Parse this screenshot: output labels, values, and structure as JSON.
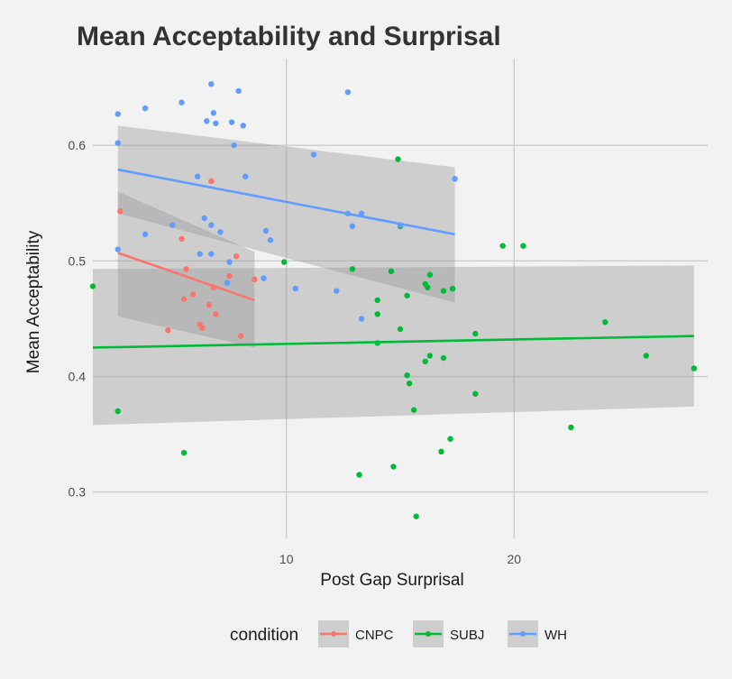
{
  "chart_data": {
    "type": "scatter",
    "title": "Mean Acceptability and Surprisal",
    "xlabel": "Post Gap Surprisal",
    "ylabel": "Mean Acceptability",
    "xlim": [
      1.5,
      28.5
    ],
    "ylim": [
      0.26,
      0.675
    ],
    "x_ticks": [
      10,
      20
    ],
    "y_ticks": [
      0.3,
      0.4,
      0.5,
      0.6
    ],
    "grid": true,
    "legend": {
      "title": "condition",
      "position": "bottom"
    },
    "series": [
      {
        "name": "CNPC",
        "color": "#F8766D",
        "points": [
          [
            2.7,
            0.543
          ],
          [
            5.4,
            0.519
          ],
          [
            5.6,
            0.493
          ],
          [
            5.5,
            0.467
          ],
          [
            5.9,
            0.471
          ],
          [
            4.8,
            0.44
          ],
          [
            6.3,
            0.442
          ],
          [
            6.2,
            0.445
          ],
          [
            6.6,
            0.462
          ],
          [
            6.7,
            0.569
          ],
          [
            6.9,
            0.454
          ],
          [
            7.5,
            0.487
          ],
          [
            7.8,
            0.504
          ],
          [
            8.6,
            0.484
          ],
          [
            8.0,
            0.435
          ],
          [
            6.8,
            0.477
          ]
        ],
        "fit": {
          "x": [
            2.6,
            8.6
          ],
          "y": [
            0.507,
            0.466
          ],
          "ci_lower": [
            0.452,
            0.425
          ],
          "ci_upper": [
            0.56,
            0.508
          ]
        }
      },
      {
        "name": "SUBJ",
        "color": "#00BA38",
        "points": [
          [
            1.5,
            0.478
          ],
          [
            2.6,
            0.37
          ],
          [
            5.5,
            0.334
          ],
          [
            9.9,
            0.499
          ],
          [
            12.9,
            0.493
          ],
          [
            13.2,
            0.315
          ],
          [
            14.0,
            0.466
          ],
          [
            14.0,
            0.454
          ],
          [
            14.0,
            0.429
          ],
          [
            14.6,
            0.491
          ],
          [
            14.7,
            0.322
          ],
          [
            14.9,
            0.588
          ],
          [
            15.0,
            0.441
          ],
          [
            15.0,
            0.53
          ],
          [
            15.3,
            0.47
          ],
          [
            15.3,
            0.401
          ],
          [
            15.4,
            0.394
          ],
          [
            15.6,
            0.371
          ],
          [
            15.7,
            0.279
          ],
          [
            16.1,
            0.48
          ],
          [
            16.1,
            0.413
          ],
          [
            16.2,
            0.477
          ],
          [
            16.3,
            0.418
          ],
          [
            16.3,
            0.488
          ],
          [
            16.8,
            0.335
          ],
          [
            16.9,
            0.474
          ],
          [
            16.9,
            0.416
          ],
          [
            17.2,
            0.346
          ],
          [
            17.3,
            0.476
          ],
          [
            18.3,
            0.437
          ],
          [
            18.3,
            0.385
          ],
          [
            19.5,
            0.513
          ],
          [
            20.4,
            0.513
          ],
          [
            22.5,
            0.356
          ],
          [
            24.0,
            0.447
          ],
          [
            25.8,
            0.418
          ],
          [
            27.9,
            0.407
          ]
        ],
        "fit": {
          "x": [
            1.5,
            27.9
          ],
          "y": [
            0.425,
            0.435
          ],
          "ci_lower": [
            0.358,
            0.374
          ],
          "ci_upper": [
            0.493,
            0.496
          ]
        }
      },
      {
        "name": "WH",
        "color": "#619CFF",
        "points": [
          [
            2.6,
            0.627
          ],
          [
            2.6,
            0.602
          ],
          [
            2.6,
            0.51
          ],
          [
            3.8,
            0.632
          ],
          [
            3.8,
            0.523
          ],
          [
            5.0,
            0.531
          ],
          [
            5.4,
            0.637
          ],
          [
            6.1,
            0.573
          ],
          [
            6.2,
            0.506
          ],
          [
            6.4,
            0.537
          ],
          [
            6.5,
            0.621
          ],
          [
            6.7,
            0.653
          ],
          [
            6.8,
            0.628
          ],
          [
            6.7,
            0.531
          ],
          [
            6.7,
            0.506
          ],
          [
            7.1,
            0.525
          ],
          [
            6.9,
            0.619
          ],
          [
            7.5,
            0.499
          ],
          [
            7.6,
            0.62
          ],
          [
            7.7,
            0.6
          ],
          [
            7.9,
            0.647
          ],
          [
            8.1,
            0.617
          ],
          [
            8.2,
            0.573
          ],
          [
            9.1,
            0.526
          ],
          [
            9.3,
            0.518
          ],
          [
            9.0,
            0.485
          ],
          [
            10.4,
            0.476
          ],
          [
            11.2,
            0.592
          ],
          [
            12.2,
            0.474
          ],
          [
            12.7,
            0.646
          ],
          [
            12.7,
            0.541
          ],
          [
            12.9,
            0.53
          ],
          [
            13.3,
            0.541
          ],
          [
            13.3,
            0.45
          ],
          [
            15.0,
            0.531
          ],
          [
            17.4,
            0.571
          ],
          [
            7.4,
            0.481
          ]
        ],
        "fit": {
          "x": [
            2.6,
            17.4
          ],
          "y": [
            0.579,
            0.523
          ],
          "ci_lower": [
            0.541,
            0.464
          ],
          "ci_upper": [
            0.617,
            0.581
          ]
        }
      }
    ]
  }
}
